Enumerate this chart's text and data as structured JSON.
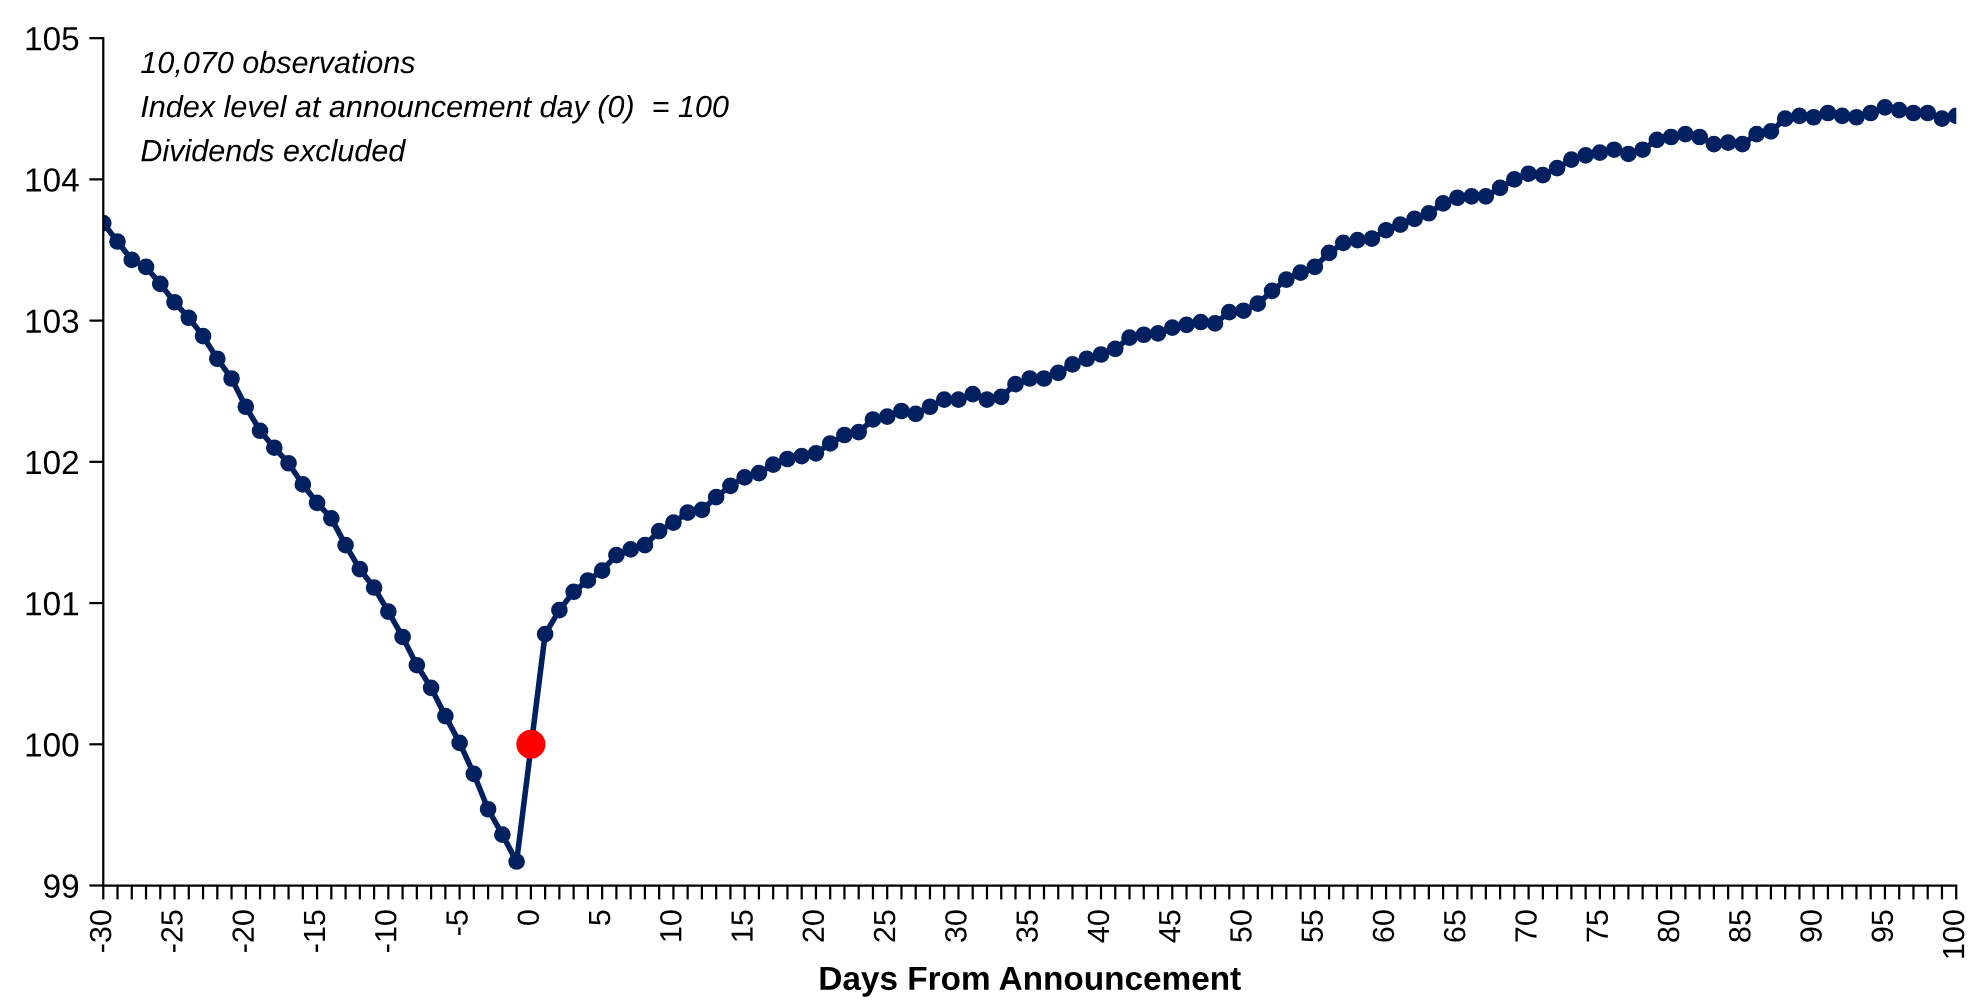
{
  "chart_data": {
    "type": "line",
    "xlabel": "Days From Announcement",
    "annotations": [
      "10,070 observations",
      "Index level at announcement day (0)  = 100",
      "Dividends excluded"
    ],
    "xlim": [
      -30,
      100
    ],
    "ylim": [
      99,
      105
    ],
    "yticks": [
      99,
      100,
      101,
      102,
      103,
      104,
      105
    ],
    "xticks": [
      -30,
      {
        "value": -29,
        "label": null
      },
      {
        "value": -28,
        "label": null
      },
      {
        "value": -27,
        "label": null
      },
      {
        "value": -26,
        "label": null
      },
      -25,
      {
        "value": -24,
        "label": null
      },
      {
        "value": -23,
        "label": null
      },
      {
        "value": -22,
        "label": null
      },
      {
        "value": -21,
        "label": null
      },
      -20,
      {
        "value": -19,
        "label": null
      },
      {
        "value": -18,
        "label": null
      },
      {
        "value": -17,
        "label": null
      },
      {
        "value": -16,
        "label": null
      },
      -15,
      {
        "value": -14,
        "label": null
      },
      {
        "value": -13,
        "label": null
      },
      {
        "value": -12,
        "label": null
      },
      {
        "value": -11,
        "label": null
      },
      -10,
      {
        "value": -9,
        "label": null
      },
      {
        "value": -8,
        "label": null
      },
      {
        "value": -7,
        "label": null
      },
      {
        "value": -6,
        "label": null
      },
      -5,
      {
        "value": -4,
        "label": null
      },
      {
        "value": -3,
        "label": null
      },
      {
        "value": -2,
        "label": null
      },
      {
        "value": -1,
        "label": null
      },
      0,
      {
        "value": 1,
        "label": null
      },
      {
        "value": 2,
        "label": null
      },
      {
        "value": 3,
        "label": null
      },
      {
        "value": 4,
        "label": null
      },
      5,
      {
        "value": 6,
        "label": null
      },
      {
        "value": 7,
        "label": null
      },
      {
        "value": 8,
        "label": null
      },
      {
        "value": 9,
        "label": null
      },
      10,
      {
        "value": 11,
        "label": null
      },
      {
        "value": 12,
        "label": null
      },
      {
        "value": 13,
        "label": null
      },
      {
        "value": 14,
        "label": null
      },
      15,
      {
        "value": 16,
        "label": null
      },
      {
        "value": 17,
        "label": null
      },
      {
        "value": 18,
        "label": null
      },
      {
        "value": 19,
        "label": null
      },
      20,
      {
        "value": 21,
        "label": null
      },
      {
        "value": 22,
        "label": null
      },
      {
        "value": 23,
        "label": null
      },
      {
        "value": 24,
        "label": null
      },
      25,
      {
        "value": 26,
        "label": null
      },
      {
        "value": 27,
        "label": null
      },
      {
        "value": 28,
        "label": null
      },
      {
        "value": 29,
        "label": null
      },
      30,
      {
        "value": 31,
        "label": null
      },
      {
        "value": 32,
        "label": null
      },
      {
        "value": 33,
        "label": null
      },
      {
        "value": 34,
        "label": null
      },
      35,
      {
        "value": 36,
        "label": null
      },
      {
        "value": 37,
        "label": null
      },
      {
        "value": 38,
        "label": null
      },
      {
        "value": 39,
        "label": null
      },
      40,
      {
        "value": 41,
        "label": null
      },
      {
        "value": 42,
        "label": null
      },
      {
        "value": 43,
        "label": null
      },
      {
        "value": 44,
        "label": null
      },
      45,
      {
        "value": 46,
        "label": null
      },
      {
        "value": 47,
        "label": null
      },
      {
        "value": 48,
        "label": null
      },
      {
        "value": 49,
        "label": null
      },
      50,
      {
        "value": 51,
        "label": null
      },
      {
        "value": 52,
        "label": null
      },
      {
        "value": 53,
        "label": null
      },
      {
        "value": 54,
        "label": null
      },
      55,
      {
        "value": 56,
        "label": null
      },
      {
        "value": 57,
        "label": null
      },
      {
        "value": 58,
        "label": null
      },
      {
        "value": 59,
        "label": null
      },
      60,
      {
        "value": 61,
        "label": null
      },
      {
        "value": 62,
        "label": null
      },
      {
        "value": 63,
        "label": null
      },
      {
        "value": 64,
        "label": null
      },
      65,
      {
        "value": 66,
        "label": null
      },
      {
        "value": 67,
        "label": null
      },
      {
        "value": 68,
        "label": null
      },
      {
        "value": 69,
        "label": null
      },
      70,
      {
        "value": 71,
        "label": null
      },
      {
        "value": 72,
        "label": null
      },
      {
        "value": 73,
        "label": null
      },
      {
        "value": 74,
        "label": null
      },
      75,
      {
        "value": 76,
        "label": null
      },
      {
        "value": 77,
        "label": null
      },
      {
        "value": 78,
        "label": null
      },
      {
        "value": 79,
        "label": null
      },
      80,
      {
        "value": 81,
        "label": null
      },
      {
        "value": 82,
        "label": null
      },
      {
        "value": 83,
        "label": null
      },
      {
        "value": 84,
        "label": null
      },
      85,
      {
        "value": 86,
        "label": null
      },
      {
        "value": 87,
        "label": null
      },
      {
        "value": 88,
        "label": null
      },
      {
        "value": 89,
        "label": null
      },
      90,
      {
        "value": 91,
        "label": null
      },
      {
        "value": 92,
        "label": null
      },
      {
        "value": 93,
        "label": null
      },
      {
        "value": 94,
        "label": null
      },
      95,
      {
        "value": 96,
        "label": null
      },
      {
        "value": 97,
        "label": null
      },
      {
        "value": 98,
        "label": null
      },
      {
        "value": 99,
        "label": null
      },
      100
    ],
    "grid": false,
    "legend": false,
    "marker": "circle",
    "line_style": "solid",
    "series": [
      {
        "color": "#002060",
        "x": [
          -30,
          -29,
          -28,
          -27,
          -26,
          -25,
          -24,
          -23,
          -22,
          -21,
          -20,
          -19,
          -18,
          -17,
          -16,
          -15,
          -14,
          -13,
          -12,
          -11,
          -10,
          -9,
          -8,
          -7,
          -6,
          -5,
          -4,
          -3,
          -2,
          -1,
          1,
          2,
          3,
          4,
          5,
          6,
          7,
          8,
          9,
          10,
          11,
          12,
          13,
          14,
          15,
          16,
          17,
          18,
          19,
          20,
          21,
          22,
          23,
          24,
          25,
          26,
          27,
          28,
          29,
          30,
          31,
          32,
          33,
          34,
          35,
          36,
          37,
          38,
          39,
          40,
          41,
          42,
          43,
          44,
          45,
          46,
          47,
          48,
          49,
          50,
          51,
          52,
          53,
          54,
          55,
          56,
          57,
          58,
          59,
          60,
          61,
          62,
          63,
          64,
          65,
          66,
          67,
          68,
          69,
          70,
          71,
          72,
          73,
          74,
          75,
          76,
          77,
          78,
          79,
          80,
          81,
          82,
          83,
          84,
          85,
          86,
          87,
          88,
          89,
          90,
          91,
          92,
          93,
          94,
          95,
          96,
          97,
          98,
          99,
          100
        ],
        "values": [
          103.69,
          103.56,
          103.43,
          103.38,
          103.26,
          103.13,
          103.02,
          102.89,
          102.73,
          102.59,
          102.39,
          102.22,
          102.1,
          101.99,
          101.84,
          101.71,
          101.6,
          101.41,
          101.24,
          101.11,
          100.94,
          100.76,
          100.56,
          100.4,
          100.2,
          100.01,
          99.79,
          99.54,
          99.36,
          99.17,
          100.78,
          100.95,
          101.08,
          101.16,
          101.23,
          101.34,
          101.38,
          101.41,
          101.51,
          101.57,
          101.64,
          101.66,
          101.75,
          101.83,
          101.89,
          101.92,
          101.98,
          102.02,
          102.04,
          102.06,
          102.13,
          102.19,
          102.21,
          102.3,
          102.32,
          102.36,
          102.34,
          102.39,
          102.44,
          102.44,
          102.48,
          102.44,
          102.46,
          102.55,
          102.59,
          102.59,
          102.63,
          102.69,
          102.73,
          102.76,
          102.8,
          102.88,
          102.9,
          102.91,
          102.95,
          102.97,
          102.99,
          102.98,
          103.06,
          103.07,
          103.12,
          103.21,
          103.29,
          103.34,
          103.38,
          103.48,
          103.55,
          103.57,
          103.58,
          103.64,
          103.68,
          103.72,
          103.76,
          103.83,
          103.87,
          103.88,
          103.88,
          103.94,
          104.0,
          104.04,
          104.03,
          104.08,
          104.14,
          104.17,
          104.19,
          104.21,
          104.18,
          104.21,
          104.28,
          104.3,
          104.32,
          104.3,
          104.25,
          104.26,
          104.25,
          104.32,
          104.34,
          104.43,
          104.45,
          104.44,
          104.47,
          104.45,
          104.44,
          104.47,
          104.51,
          104.49,
          104.47,
          104.47,
          104.43,
          104.45
        ]
      },
      {
        "type": "scatter",
        "color": "#ff0000",
        "x": [
          0
        ],
        "values": [
          100
        ]
      }
    ]
  }
}
